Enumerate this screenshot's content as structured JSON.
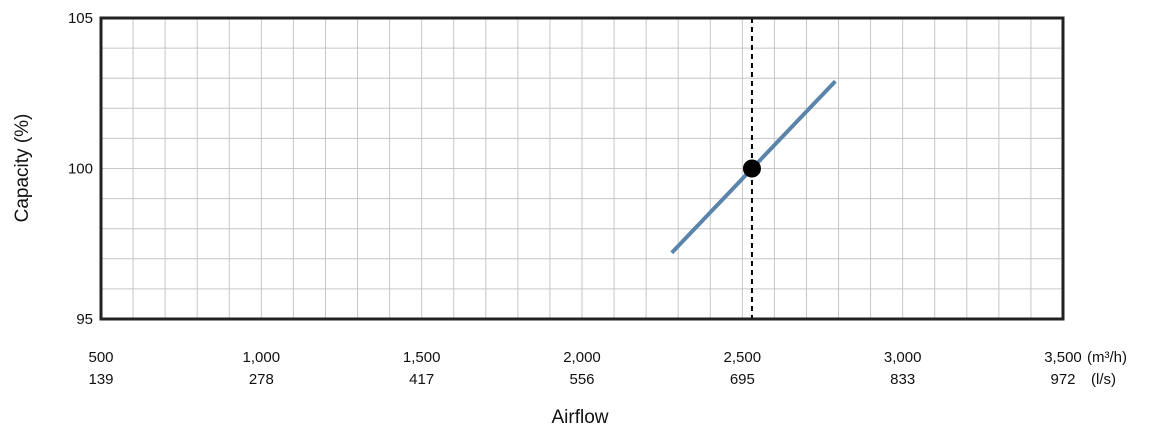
{
  "chart_data": {
    "type": "line",
    "title": "",
    "xlabel": "Airflow",
    "ylabel": "Capacity (%)",
    "xlim": [
      500,
      3500
    ],
    "ylim": [
      95,
      105
    ],
    "grid": true,
    "x_ticks_primary": [
      500,
      1000,
      1500,
      2000,
      2500,
      3000,
      3500
    ],
    "x_tick_labels_primary": [
      "500",
      "1,000",
      "1,500",
      "2,000",
      "2,500",
      "3,000",
      "3,500"
    ],
    "x_unit_primary": "(m³/h)",
    "x_tick_labels_secondary": [
      "139",
      "278",
      "417",
      "556",
      "695",
      "833",
      "972"
    ],
    "x_unit_secondary": "(l/s)",
    "y_ticks": [
      95,
      100,
      105
    ],
    "y_tick_labels": [
      "95",
      "100",
      "105"
    ],
    "series": [
      {
        "x": [
          2280,
          2790
        ],
        "y": [
          97.2,
          102.9
        ],
        "color": "#5b84aa"
      }
    ],
    "marker": {
      "x": 2530,
      "y": 100,
      "color": "#000000"
    },
    "vertical_reference_line": {
      "x": 2530,
      "style": "dashed",
      "color": "#000000"
    }
  }
}
